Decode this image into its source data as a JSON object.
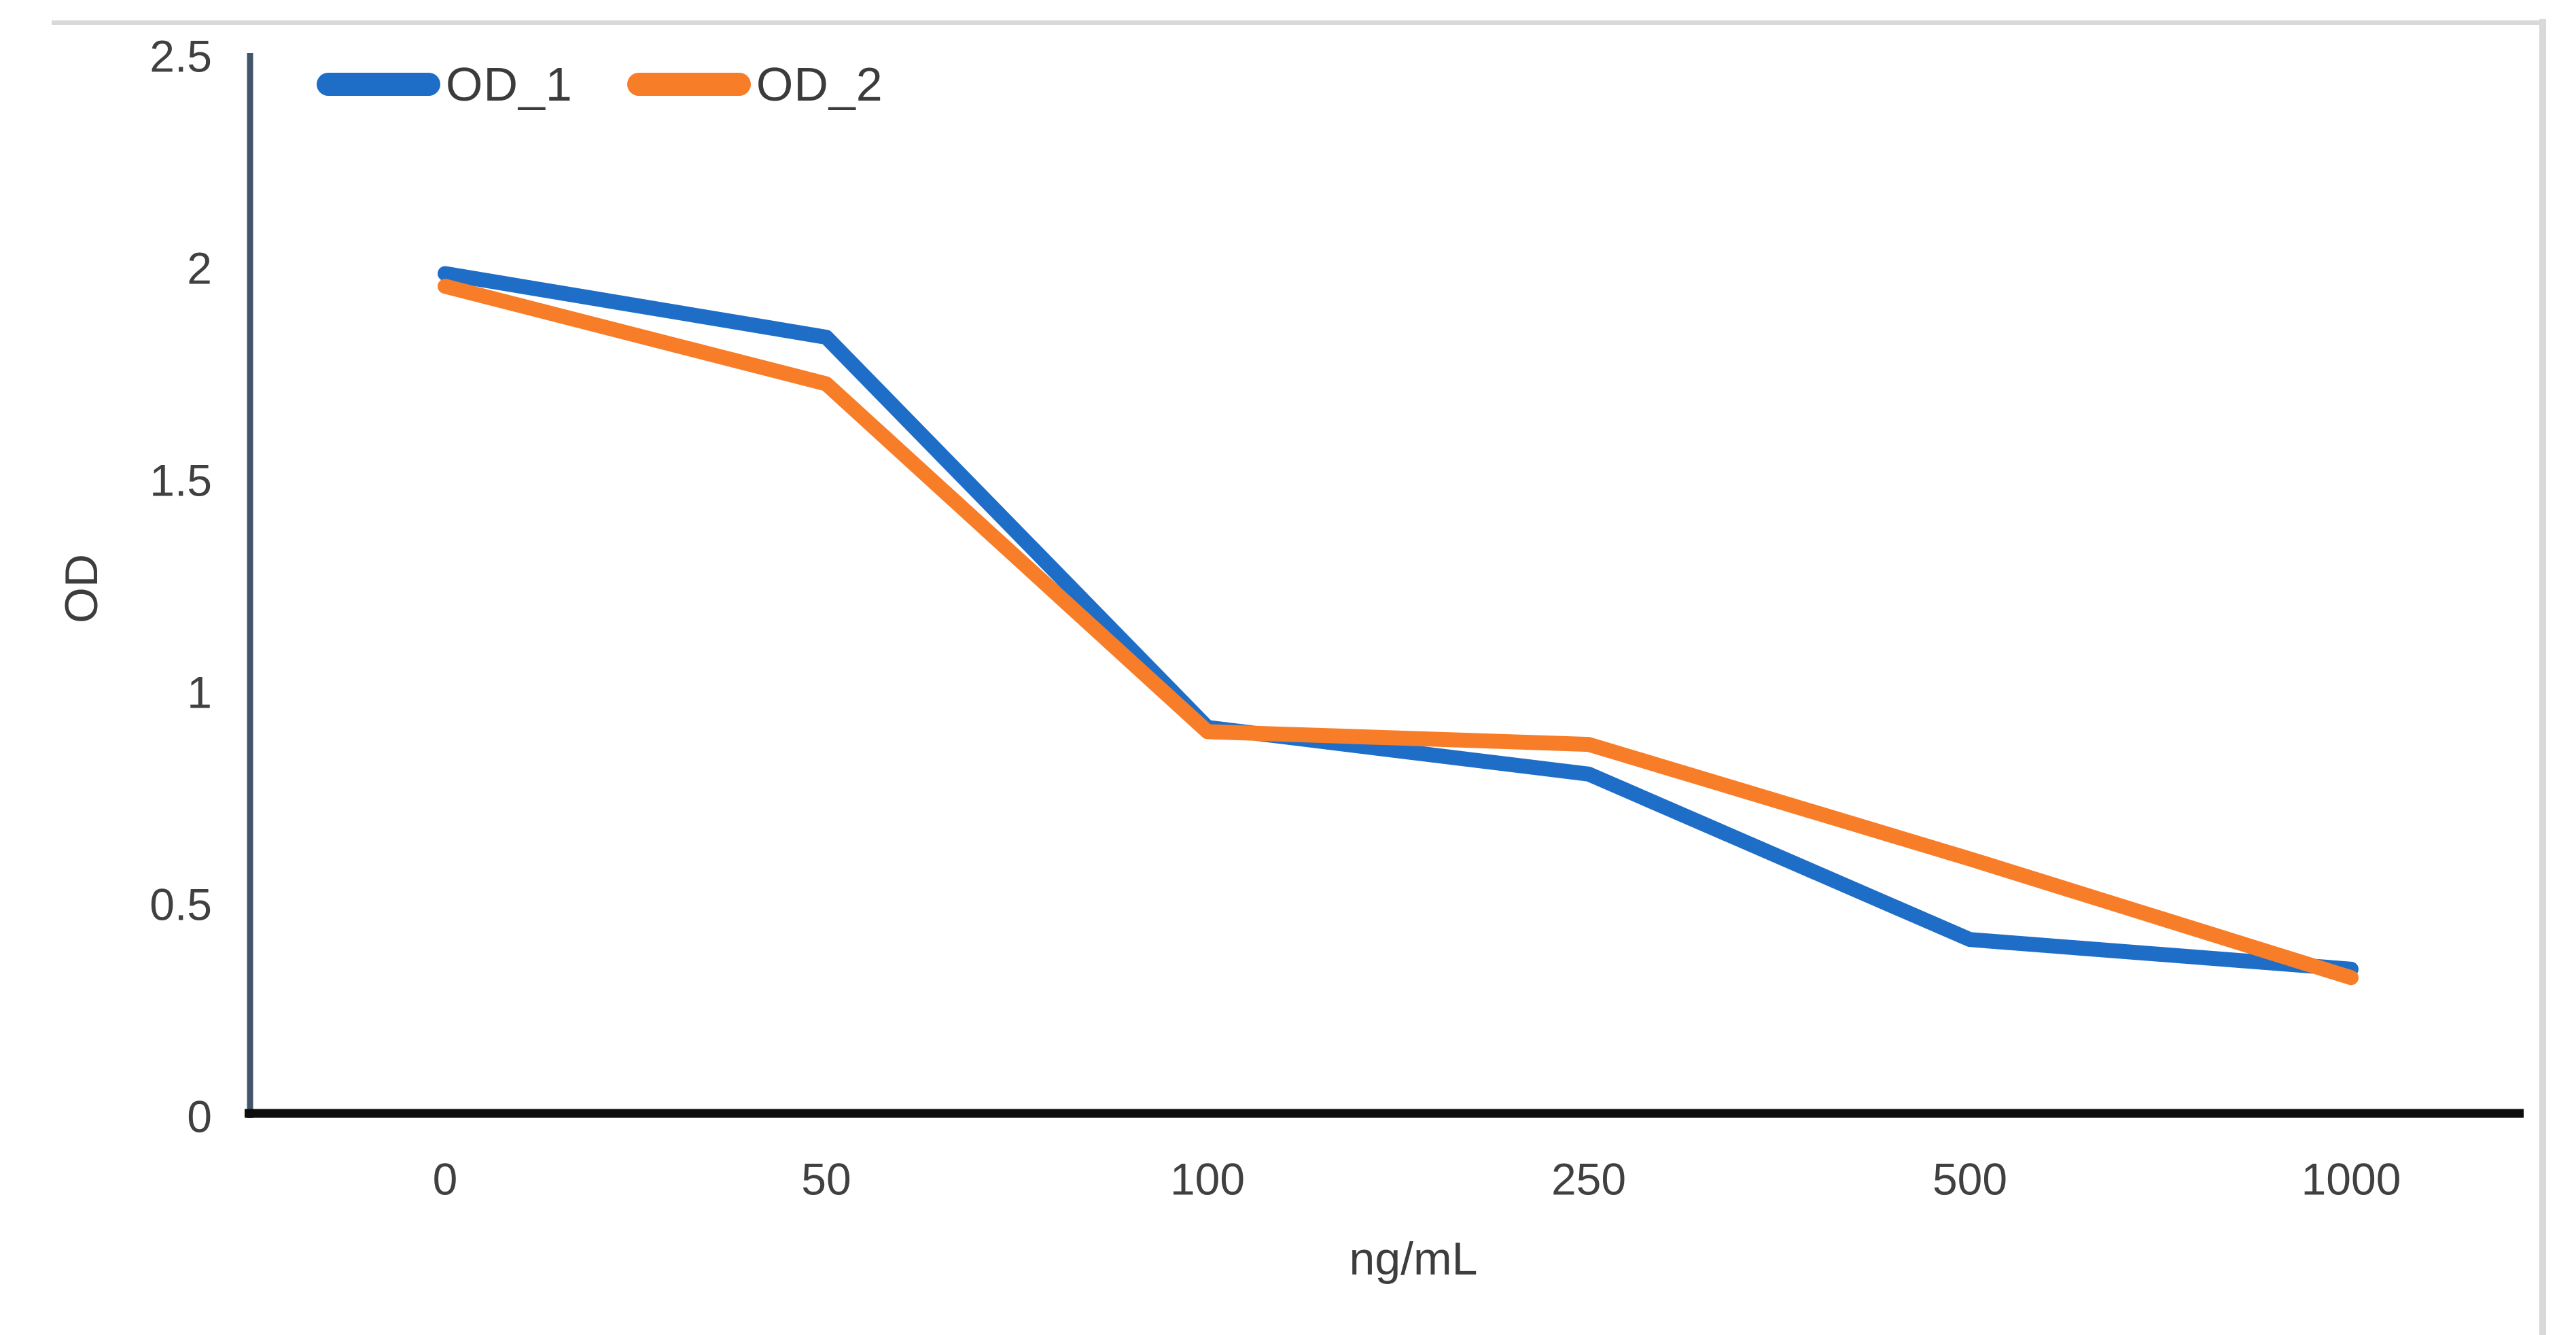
{
  "chart_data": {
    "type": "line",
    "title": "",
    "categories": [
      "0",
      "50",
      "100",
      "250",
      "500",
      "1000"
    ],
    "series": [
      {
        "name": "OD_1",
        "color": "#1e6ec8",
        "values": [
          1.98,
          1.83,
          0.91,
          0.8,
          0.41,
          0.34
        ]
      },
      {
        "name": "OD_2",
        "color": "#f87d28",
        "values": [
          1.95,
          1.72,
          0.9,
          0.87,
          0.6,
          0.32
        ]
      }
    ],
    "xlabel": "ng/mL",
    "ylabel": "OD",
    "ylim": [
      0,
      2.5
    ],
    "yticks": [
      "0",
      "0.5",
      "1",
      "1.5",
      "2",
      "2.5"
    ],
    "grid": false,
    "legend_position": "top-left",
    "x_axis_type": "categorical",
    "axis_colors": {
      "y_axis": "#44546a",
      "x_axis": "#0d0d0d"
    },
    "tick_label_color": "#404040",
    "border_color": "#d9d9d9"
  }
}
